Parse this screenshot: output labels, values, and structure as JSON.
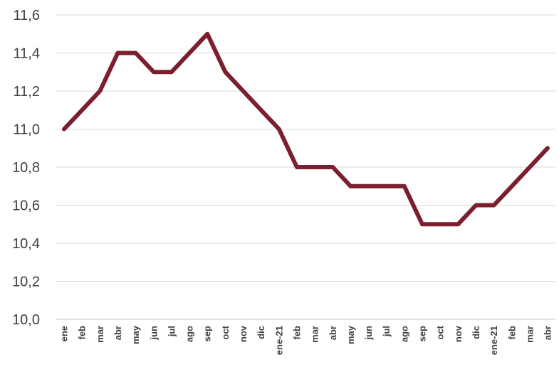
{
  "chart_data": {
    "type": "line",
    "title": "",
    "xlabel": "",
    "ylabel": "",
    "categories": [
      "ene",
      "feb",
      "mar",
      "abr",
      "may",
      "jun",
      "jul",
      "ago",
      "sep",
      "oct",
      "nov",
      "dic",
      "ene-21",
      "feb",
      "mar",
      "abr",
      "may",
      "jun",
      "jul",
      "ago",
      "sep",
      "oct",
      "nov",
      "dic",
      "ene-21",
      "feb",
      "mar",
      "abr"
    ],
    "series": [
      {
        "values": [
          11.0,
          11.1,
          11.2,
          11.4,
          11.4,
          11.3,
          11.3,
          11.4,
          11.5,
          11.3,
          11.2,
          11.1,
          11.0,
          10.8,
          10.8,
          10.8,
          10.7,
          10.7,
          10.7,
          10.7,
          10.5,
          10.5,
          10.5,
          10.6,
          10.6,
          10.7,
          10.8,
          10.9
        ],
        "color": "#7b1f2e"
      }
    ],
    "ylim": [
      10.0,
      11.6
    ],
    "yticks": [
      "10,0",
      "10,2",
      "10,4",
      "10,6",
      "10,8",
      "11,0",
      "11,2",
      "11,4",
      "11,6"
    ],
    "grid": true,
    "legend": "none"
  }
}
